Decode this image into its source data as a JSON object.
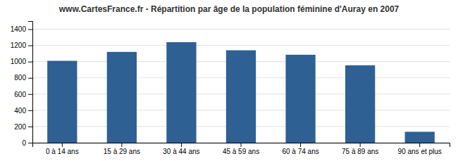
{
  "chart_data": {
    "type": "bar",
    "title": "www.CartesFrance.fr - Répartition par âge de la population féminine d'Auray en 2007",
    "categories": [
      "0 à 14 ans",
      "15 à 29 ans",
      "30 à 44 ans",
      "45 à 59 ans",
      "60 à 74 ans",
      "75 à 89 ans",
      "90 ans et plus"
    ],
    "values": [
      1010,
      1120,
      1240,
      1140,
      1085,
      955,
      135
    ],
    "color": "#2e6094",
    "ylim": [
      0,
      1500
    ],
    "yticks": [
      0,
      200,
      400,
      600,
      800,
      1000,
      1200,
      1400
    ],
    "grid": true
  }
}
